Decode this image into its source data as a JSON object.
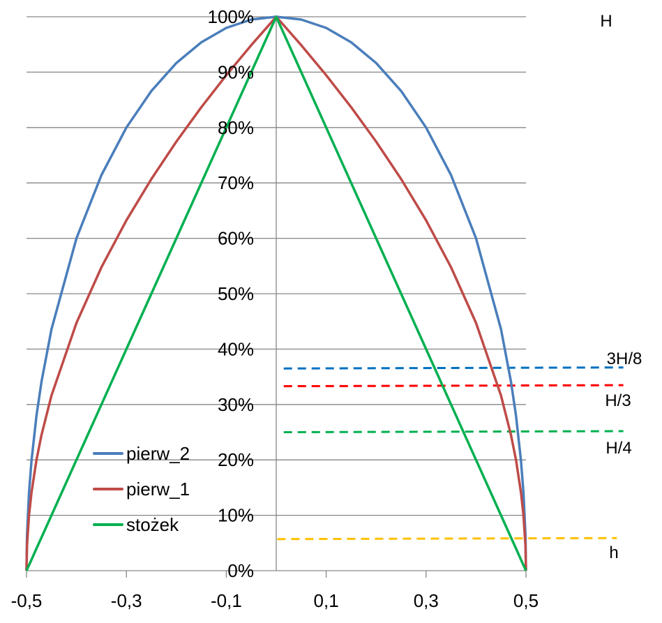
{
  "chart_data": {
    "type": "line",
    "title": "",
    "xlabel": "",
    "ylabel": "",
    "xlim": [
      -0.5,
      0.5
    ],
    "ylim": [
      0,
      1
    ],
    "grid": "horizontal",
    "legend_placement": "bottom-left",
    "x_ticks": [
      -0.5,
      -0.3,
      -0.1,
      0.1,
      0.3,
      0.5
    ],
    "x_tick_labels": [
      "-0,5",
      "-0,3",
      "-0,1",
      "0,1",
      "0,3",
      "0,5"
    ],
    "y_ticks": [
      0,
      0.1,
      0.2,
      0.3,
      0.4,
      0.5,
      0.6,
      0.7,
      0.8,
      0.9,
      1.0
    ],
    "y_tick_labels": [
      "0%",
      "10%",
      "20%",
      "30%",
      "40%",
      "50%",
      "60%",
      "70%",
      "80%",
      "90%",
      "100%"
    ],
    "x": [
      -0.5,
      -0.499,
      -0.495,
      -0.49,
      -0.48,
      -0.47,
      -0.45,
      -0.4,
      -0.35,
      -0.3,
      -0.25,
      -0.2,
      -0.15,
      -0.1,
      -0.05,
      0,
      0.05,
      0.1,
      0.15,
      0.2,
      0.25,
      0.3,
      0.35,
      0.4,
      0.45,
      0.47,
      0.48,
      0.49,
      0.495,
      0.499,
      0.5
    ],
    "series": [
      {
        "name": "pierw_2",
        "color": "#4a7ebb",
        "values": [
          0,
          0.0632,
          0.1411,
          0.199,
          0.28,
          0.3412,
          0.4359,
          0.6,
          0.7141,
          0.8,
          0.866,
          0.9165,
          0.9539,
          0.9798,
          0.995,
          1,
          0.995,
          0.9798,
          0.9539,
          0.9165,
          0.866,
          0.8,
          0.7141,
          0.6,
          0.4359,
          0.3412,
          0.28,
          0.199,
          0.1411,
          0.0632,
          0
        ]
      },
      {
        "name": "pierw_1",
        "color": "#be4b48",
        "values": [
          0,
          0.0447,
          0.1,
          0.1414,
          0.2,
          0.2449,
          0.3162,
          0.4472,
          0.5477,
          0.6325,
          0.7071,
          0.7746,
          0.8367,
          0.8944,
          0.9487,
          1,
          0.9487,
          0.8944,
          0.8367,
          0.7746,
          0.7071,
          0.6325,
          0.5477,
          0.4472,
          0.3162,
          0.2449,
          0.2,
          0.1414,
          0.1,
          0.0447,
          0
        ]
      },
      {
        "name": "stożek",
        "color": "#00b050",
        "values": [
          0,
          0.002,
          0.01,
          0.02,
          0.04,
          0.06,
          0.1,
          0.2,
          0.3,
          0.4,
          0.5,
          0.6,
          0.7,
          0.8,
          0.9,
          1,
          0.9,
          0.8,
          0.7,
          0.6,
          0.5,
          0.4,
          0.3,
          0.2,
          0.1,
          0.06,
          0.04,
          0.02,
          0.01,
          0.002,
          0
        ]
      }
    ],
    "reference_lines": [
      {
        "label": "3H/8",
        "color": "#0070c0",
        "y": 0.365,
        "x_range": [
          0.015,
          0.695
        ]
      },
      {
        "label": "H/3",
        "color": "#ff0000",
        "y": 0.333,
        "x_range": [
          0.015,
          0.695
        ]
      },
      {
        "label": "H/4",
        "color": "#00b050",
        "y": 0.25,
        "x_range": [
          0.015,
          0.695
        ]
      },
      {
        "label": "h",
        "color": "#ffc000",
        "y": 0.057,
        "x_range": [
          0.002,
          0.682
        ]
      }
    ],
    "annotations": [
      {
        "text": "H",
        "y": 1.0
      }
    ]
  }
}
